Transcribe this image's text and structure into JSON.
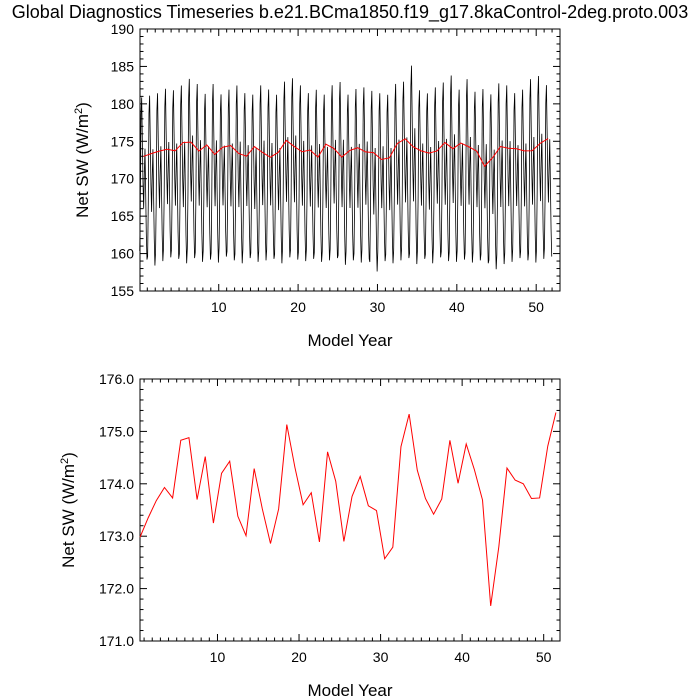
{
  "chart_data": [
    {
      "type": "line",
      "title": "Global Diagnostics Timeseries b.e21.BCma1850.f19_g17.8kaControl-2deg.proto.003",
      "xlabel": "Model Year",
      "ylabel": "Net SW (W/m",
      "ylabel_sup": "2",
      "ylabel_end": ")",
      "xlim": [
        0.08,
        53
      ],
      "ylim": [
        155,
        190
      ],
      "xticks": [
        10,
        20,
        30,
        40,
        50
      ],
      "xtick_labels": [
        "10",
        "20",
        "30",
        "40",
        "50"
      ],
      "yticks": [
        155,
        160,
        165,
        170,
        175,
        180,
        185,
        190
      ],
      "ytick_labels": [
        "155",
        "160",
        "165",
        "170",
        "175",
        "180",
        "185",
        "190"
      ],
      "grid": false,
      "series": [
        {
          "color": "#000000",
          "seasonal_peaks": [
            182.0,
            182.3,
            182.6,
            183.2,
            183.0,
            183.7,
            184.6,
            183.9,
            182.5,
            183.9,
            182.4,
            183.1,
            183.7,
            182.6,
            182.4,
            183.7,
            183.1,
            182.4,
            184.2,
            184.7,
            183.7,
            182.6,
            183.1,
            182.4,
            183.7,
            184.2,
            182.4,
            183.2,
            183.4,
            183.0,
            182.6,
            182.4,
            183.9,
            184.2,
            186.5,
            183.0,
            182.6,
            183.4,
            184.1,
            185.1,
            183.1,
            184.6,
            182.8,
            183.2,
            182.5,
            184.0,
            183.7,
            182.6,
            183.1,
            184.6,
            185.0,
            183.7
          ],
          "seasonal_troughs": [
            159.2,
            158.4,
            159.0,
            159.5,
            159.3,
            158.7,
            159.4,
            158.9,
            159.2,
            158.8,
            159.6,
            159.1,
            158.7,
            159.4,
            158.9,
            159.1,
            159.3,
            158.7,
            159.5,
            159.2,
            159.0,
            159.3,
            158.9,
            159.1,
            159.4,
            158.5,
            159.1,
            158.8,
            159.3,
            157.6,
            159.0,
            158.7,
            159.1,
            159.4,
            158.6,
            159.3,
            158.7,
            159.5,
            159.0,
            158.9,
            159.2,
            158.8,
            159.1,
            158.7,
            157.9,
            158.6,
            158.9,
            159.4,
            159.1,
            158.8,
            159.3,
            159.6
          ]
        },
        {
          "color": "#ff0000",
          "x": [
            0.5,
            1.5,
            2.5,
            3.5,
            4.5,
            5.5,
            6.5,
            7.5,
            8.5,
            9.5,
            10.5,
            11.5,
            12.5,
            13.5,
            14.5,
            15.5,
            16.5,
            17.5,
            18.5,
            19.5,
            20.5,
            21.5,
            22.5,
            23.5,
            24.5,
            25.5,
            26.5,
            27.5,
            28.5,
            29.5,
            30.5,
            31.5,
            32.5,
            33.5,
            34.5,
            35.5,
            36.5,
            37.5,
            38.5,
            39.5,
            40.5,
            41.5,
            42.5,
            43.5,
            44.5,
            45.5,
            46.5,
            47.5,
            48.5,
            49.5,
            50.5,
            51.5
          ],
          "values": [
            172.98,
            173.35,
            173.68,
            173.93,
            173.73,
            174.83,
            174.88,
            173.7,
            174.52,
            173.25,
            174.2,
            174.43,
            173.38,
            173.01,
            174.29,
            173.52,
            172.86,
            173.52,
            175.13,
            174.31,
            173.6,
            173.83,
            172.89,
            174.61,
            174.05,
            172.9,
            173.76,
            174.14,
            173.58,
            173.49,
            172.57,
            172.79,
            174.71,
            175.33,
            174.26,
            173.72,
            173.42,
            173.71,
            174.83,
            174.01,
            174.76,
            174.27,
            173.69,
            171.67,
            172.8,
            174.3,
            174.07,
            174.0,
            173.72,
            173.73,
            174.72,
            175.36
          ]
        }
      ]
    },
    {
      "type": "line",
      "xlabel": "Model Year",
      "ylabel": "Net SW (W/m",
      "ylabel_sup": "2",
      "ylabel_end": ")",
      "xlim": [
        0.5,
        52
      ],
      "ylim": [
        171.0,
        176.0
      ],
      "xticks": [
        10,
        20,
        30,
        40,
        50
      ],
      "xtick_labels": [
        "10",
        "20",
        "30",
        "40",
        "50"
      ],
      "yticks": [
        171.0,
        172.0,
        173.0,
        174.0,
        175.0,
        176.0
      ],
      "ytick_labels": [
        "171.0",
        "172.0",
        "173.0",
        "174.0",
        "175.0",
        "176.0"
      ],
      "grid": false,
      "series": [
        {
          "color": "#ff0000",
          "x": [
            0.5,
            1.5,
            2.5,
            3.5,
            4.5,
            5.5,
            6.5,
            7.5,
            8.5,
            9.5,
            10.5,
            11.5,
            12.5,
            13.5,
            14.5,
            15.5,
            16.5,
            17.5,
            18.5,
            19.5,
            20.5,
            21.5,
            22.5,
            23.5,
            24.5,
            25.5,
            26.5,
            27.5,
            28.5,
            29.5,
            30.5,
            31.5,
            32.5,
            33.5,
            34.5,
            35.5,
            36.5,
            37.5,
            38.5,
            39.5,
            40.5,
            41.5,
            42.5,
            43.5,
            44.5,
            45.5,
            46.5,
            47.5,
            48.5,
            49.5,
            50.5,
            51.5
          ],
          "values": [
            172.98,
            173.35,
            173.68,
            173.93,
            173.73,
            174.83,
            174.88,
            173.7,
            174.52,
            173.25,
            174.2,
            174.43,
            173.38,
            173.01,
            174.29,
            173.52,
            172.86,
            173.52,
            175.13,
            174.31,
            173.6,
            173.83,
            172.89,
            174.61,
            174.05,
            172.9,
            173.76,
            174.14,
            173.58,
            173.49,
            172.57,
            172.79,
            174.71,
            175.33,
            174.26,
            173.72,
            173.42,
            173.71,
            174.83,
            174.01,
            174.76,
            174.27,
            173.69,
            171.67,
            172.8,
            174.3,
            174.07,
            174.0,
            173.72,
            173.73,
            174.72,
            175.36
          ]
        }
      ]
    }
  ]
}
